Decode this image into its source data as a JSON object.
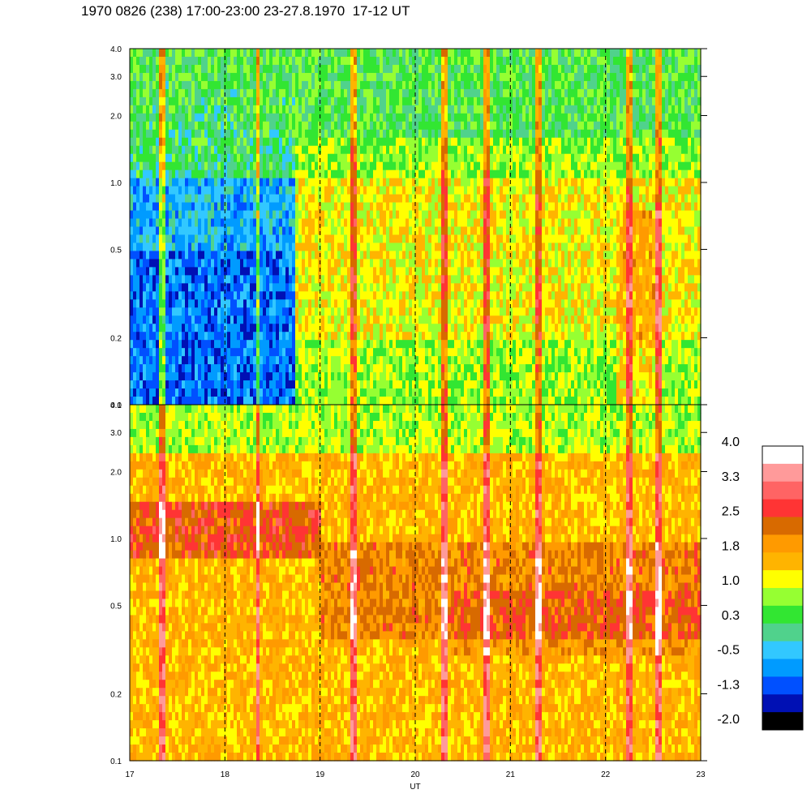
{
  "title": "1970 0826 (238) 17:00-23:00 23-27.8.1970  17-12 UT",
  "chart_data": {
    "type": "heatmap",
    "xlabel": "UT",
    "x_ticks": [
      "17",
      "18",
      "19",
      "20",
      "21",
      "22",
      "23"
    ],
    "xlim": [
      17,
      23
    ],
    "y_scale": "log",
    "ylim": [
      0.1,
      4.0
    ],
    "y_ticks": [
      "4.0",
      "3.0",
      "2.0",
      "1.0",
      "0.5",
      "0.2",
      "0.1"
    ],
    "dashed_gridlines_x": [
      18,
      19,
      20,
      21,
      22
    ],
    "panels": [
      {
        "name": "upper",
        "baseline_before_18.75": 0.0,
        "baseline_after_18.75": 1.1,
        "transition_ut": 18.75
      },
      {
        "name": "lower",
        "baseline": 1.8,
        "enhanced_band_y": [
          0.8,
          1.3
        ],
        "enhanced_band_ut": [
          17,
          19
        ]
      }
    ],
    "colorbar": {
      "labels": [
        "4.0",
        "3.3",
        "2.5",
        "1.8",
        "1.0",
        "0.3",
        "-0.5",
        "-1.3",
        "-2.0"
      ],
      "colors": [
        "#ffffff",
        "#ff9a9a",
        "#ff6464",
        "#ff3434",
        "#d86a00",
        "#ff9a00",
        "#ffb400",
        "#ffff00",
        "#96ff32",
        "#32e632",
        "#50d28c",
        "#32c8ff",
        "#009bff",
        "#0050ff",
        "#0010b4",
        "#000000"
      ]
    }
  }
}
